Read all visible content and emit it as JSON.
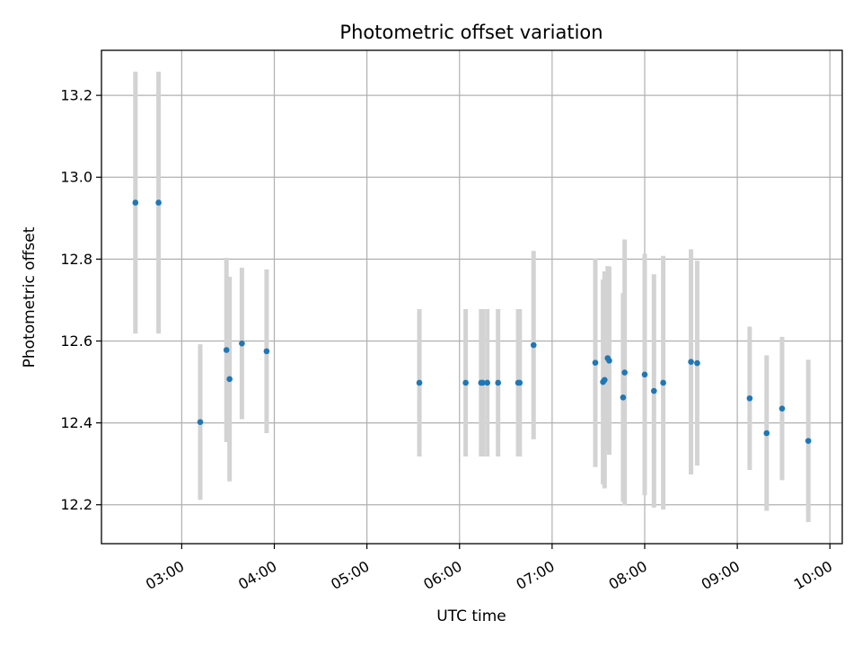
{
  "chart_data": {
    "type": "scatter",
    "title": "Photometric offset variation",
    "xlabel": "UTC time",
    "ylabel": "Photometric offset",
    "x_tick_labels": [
      "03:00",
      "04:00",
      "05:00",
      "06:00",
      "07:00",
      "08:00",
      "09:00",
      "10:00"
    ],
    "y_tick_labels": [
      "12.2",
      "12.4",
      "12.6",
      "12.8",
      "13.0",
      "13.2"
    ],
    "xlim": [
      "02:08",
      "10:08"
    ],
    "ylim": [
      12.105,
      13.31
    ],
    "grid": true,
    "marker_color": "#1f77b4",
    "errorbar_color": "#d3d3d3",
    "series": [
      {
        "points": [
          {
            "x": "02:30",
            "y": 12.938,
            "err": 0.32
          },
          {
            "x": "02:45",
            "y": 12.938,
            "err": 0.32
          },
          {
            "x": "03:12",
            "y": 12.402,
            "err": 0.19
          },
          {
            "x": "03:29",
            "y": 12.578,
            "err": 0.225
          },
          {
            "x": "03:31",
            "y": 12.507,
            "err": 0.25
          },
          {
            "x": "03:39",
            "y": 12.594,
            "err": 0.185
          },
          {
            "x": "03:55",
            "y": 12.575,
            "err": 0.2
          },
          {
            "x": "05:34",
            "y": 12.498,
            "err": 0.18
          },
          {
            "x": "06:04",
            "y": 12.498,
            "err": 0.18
          },
          {
            "x": "06:14",
            "y": 12.498,
            "err": 0.18
          },
          {
            "x": "06:15",
            "y": 12.498,
            "err": 0.18
          },
          {
            "x": "06:18",
            "y": 12.498,
            "err": 0.18
          },
          {
            "x": "06:25",
            "y": 12.498,
            "err": 0.18
          },
          {
            "x": "06:38",
            "y": 12.498,
            "err": 0.18
          },
          {
            "x": "06:39",
            "y": 12.498,
            "err": 0.18
          },
          {
            "x": "06:48",
            "y": 12.59,
            "err": 0.23
          },
          {
            "x": "07:28",
            "y": 12.547,
            "err": 0.255
          },
          {
            "x": "07:33",
            "y": 12.5,
            "err": 0.25
          },
          {
            "x": "07:34",
            "y": 12.505,
            "err": 0.265
          },
          {
            "x": "07:36",
            "y": 12.558,
            "err": 0.225
          },
          {
            "x": "07:37",
            "y": 12.552,
            "err": 0.23
          },
          {
            "x": "07:46",
            "y": 12.462,
            "err": 0.255
          },
          {
            "x": "07:47",
            "y": 12.523,
            "err": 0.325
          },
          {
            "x": "08:00",
            "y": 12.518,
            "err": 0.295
          },
          {
            "x": "08:06",
            "y": 12.478,
            "err": 0.285
          },
          {
            "x": "08:12",
            "y": 12.498,
            "err": 0.31
          },
          {
            "x": "08:30",
            "y": 12.549,
            "err": 0.275
          },
          {
            "x": "08:34",
            "y": 12.546,
            "err": 0.25
          },
          {
            "x": "09:08",
            "y": 12.46,
            "err": 0.175
          },
          {
            "x": "09:19",
            "y": 12.375,
            "err": 0.19
          },
          {
            "x": "09:29",
            "y": 12.435,
            "err": 0.175
          },
          {
            "x": "09:46",
            "y": 12.356,
            "err": 0.198
          }
        ]
      }
    ]
  }
}
